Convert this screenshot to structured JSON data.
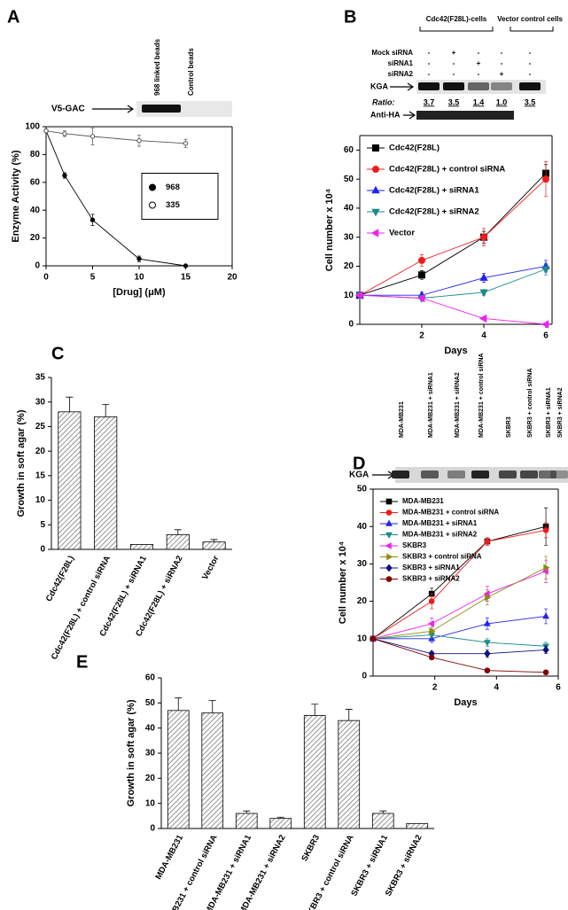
{
  "chart_data": [
    {
      "panel": "A",
      "type": "line",
      "xlabel": "[Drug] (μM)",
      "ylabel": "Enzyme Activity (%)",
      "x": [
        0,
        2,
        5,
        10,
        15
      ],
      "xlim": [
        0,
        20
      ],
      "xticks": [
        0,
        5,
        10,
        15,
        20
      ],
      "ylim": [
        0,
        100
      ],
      "yticks": [
        0,
        20,
        40,
        60,
        80,
        100
      ],
      "box": true,
      "legend": "center right",
      "legend_frame": true,
      "series": [
        {
          "name": "968",
          "color": "#000000",
          "marker": "circle",
          "values": [
            97,
            65,
            33,
            5,
            0
          ],
          "errors": [
            0,
            2,
            4,
            2,
            0
          ]
        },
        {
          "name": "335",
          "color": "#555555",
          "marker": "circle-open",
          "values": [
            97,
            95,
            93,
            90,
            88
          ],
          "errors": [
            0,
            2,
            6,
            4,
            3
          ]
        }
      ],
      "blot": {
        "label": "V5-GAC",
        "lanes": [
          "968 linked beads",
          "Control beads"
        ]
      }
    },
    {
      "panel": "B",
      "type": "line",
      "xlabel": "Days",
      "ylabel": "Cell number x 10⁴",
      "x": [
        0,
        2,
        4,
        6
      ],
      "xlim": [
        0,
        6.2
      ],
      "xticks": [
        2,
        4,
        6
      ],
      "ylim": [
        0,
        65
      ],
      "yticks": [
        0,
        10,
        20,
        30,
        40,
        50,
        60
      ],
      "box": true,
      "legend": "upper left",
      "series": [
        {
          "name": "Cdc42(F28L)",
          "color": "#000000",
          "marker": "square",
          "values": [
            10,
            17,
            30,
            52
          ],
          "errors": [
            0,
            1.5,
            2,
            3
          ]
        },
        {
          "name": "Cdc42(F28L) + control siRNA",
          "color": "#ee1c1c",
          "marker": "circle",
          "values": [
            10,
            22,
            30,
            50
          ],
          "errors": [
            0,
            2,
            3,
            6
          ]
        },
        {
          "name": "Cdc42(F28L) + siRNA1",
          "color": "#2222ee",
          "marker": "triangle-up",
          "values": [
            10,
            10,
            16,
            20
          ],
          "errors": [
            0,
            1,
            1.5,
            2
          ]
        },
        {
          "name": "Cdc42(F28L) + siRNA2",
          "color": "#1a8a8a",
          "marker": "triangle-down",
          "values": [
            10,
            9,
            11,
            19
          ],
          "errors": [
            0,
            1,
            1,
            2
          ]
        },
        {
          "name": "Vector",
          "color": "#ee22ee",
          "marker": "triangle-left",
          "values": [
            10,
            9,
            2,
            0
          ],
          "errors": [
            0,
            0.5,
            0.5,
            0
          ]
        }
      ],
      "blot": {
        "groups": [
          "Cdc42(F28L)-cells",
          "Vector control cells"
        ],
        "rows": [
          {
            "label": "Mock siRNA",
            "signs": [
              "-",
              "+",
              "-",
              "-",
              "-"
            ]
          },
          {
            "label": "siRNA1",
            "signs": [
              "-",
              "-",
              "+",
              "-",
              "-"
            ]
          },
          {
            "label": "siRNA2",
            "signs": [
              "-",
              "-",
              "-",
              "+",
              "-"
            ]
          }
        ],
        "band": "KGA",
        "ratio_label": "Ratio:",
        "ratios": [
          "3.7",
          "3.5",
          "1.4",
          "1.0",
          "3.5"
        ],
        "loading": "Anti-HA"
      }
    },
    {
      "panel": "C",
      "type": "bar",
      "ylabel": "Growth in soft agar (%)",
      "categories": [
        "Cdc42(F28L)",
        "Cdc42(F28L) + control siRNA",
        "Cdc42(F28L) + siRNA1",
        "Cdc42(F28L) + siRNA2",
        "Vector"
      ],
      "values": [
        28,
        27,
        1,
        3,
        1.5
      ],
      "errors": [
        3,
        2.5,
        0,
        1,
        0.5
      ],
      "ylim": [
        0,
        35
      ],
      "yticks": [
        0,
        5,
        10,
        15,
        20,
        25,
        30,
        35
      ]
    },
    {
      "panel": "D",
      "type": "line",
      "xlabel": "Days",
      "ylabel": "Cell number x 10⁴",
      "x": [
        0,
        1.9,
        3.7,
        5.6
      ],
      "xlim": [
        0,
        6
      ],
      "xticks": [
        2,
        4,
        6
      ],
      "ylim": [
        0,
        50
      ],
      "yticks": [
        0,
        10,
        20,
        30,
        40,
        50
      ],
      "box": true,
      "legend": "upper left",
      "series": [
        {
          "name": "MDA-MB231",
          "color": "#000000",
          "marker": "square",
          "values": [
            10,
            22,
            36,
            40
          ],
          "errors": [
            0,
            1.5,
            1,
            5
          ]
        },
        {
          "name": "MDA-MB231 + control siRNA",
          "color": "#ee1c1c",
          "marker": "circle",
          "values": [
            10,
            20,
            36,
            39
          ],
          "errors": [
            0,
            2,
            1,
            2
          ]
        },
        {
          "name": "MDA-MB231 + siRNA1",
          "color": "#2222ee",
          "marker": "triangle-up",
          "values": [
            10,
            10,
            14,
            16
          ],
          "errors": [
            0,
            1,
            1.5,
            2
          ]
        },
        {
          "name": "MDA-MB231 + siRNA2",
          "color": "#1a8a8a",
          "marker": "triangle-down",
          "values": [
            10,
            11,
            9,
            8
          ],
          "errors": [
            0,
            1,
            1,
            1
          ]
        },
        {
          "name": "SKBR3",
          "color": "#ee22ee",
          "marker": "triangle-left",
          "values": [
            10,
            14,
            22,
            28
          ],
          "errors": [
            0,
            1.5,
            2,
            3
          ]
        },
        {
          "name": "SKBR3 + control siRNA",
          "color": "#8a8a10",
          "marker": "triangle-right",
          "values": [
            10,
            12,
            21,
            29
          ],
          "errors": [
            0,
            1,
            2,
            3
          ]
        },
        {
          "name": "SKBR3 + siRNA1",
          "color": "#101080",
          "marker": "diamond",
          "values": [
            10,
            6,
            6,
            7
          ],
          "errors": [
            0,
            0.5,
            1,
            1
          ]
        },
        {
          "name": "SKBR3 + siRNA2",
          "color": "#800000",
          "marker": "circle",
          "values": [
            10,
            5,
            1.5,
            1
          ],
          "errors": [
            0,
            0.5,
            0.5,
            0.3
          ]
        }
      ],
      "blot": {
        "band": "KGA",
        "lanes": [
          "MDA-MB231",
          "MDA-MB231 + siRNA1",
          "MDA-MB231 + siRNA2",
          "MDA-MB231 + control siRNA",
          "SKBR3",
          "SKBR3 + control siRNA",
          "SKBR3 + siRNA1",
          "SKBR3 + siRNA2"
        ]
      }
    },
    {
      "panel": "E",
      "type": "bar",
      "ylabel": "Growth in soft agar (%)",
      "categories": [
        "MDA-MB231",
        "MDA-MB231 + control siRNA",
        "MDA-MB231 + siRNA1",
        "MDA-MB231 + siRNA2",
        "SKBR3",
        "SKBR3 + control siRNA",
        "SKBR3 + siRNA1",
        "SKBR3 + siRNA2"
      ],
      "values": [
        47,
        46,
        6,
        4,
        45,
        43,
        6,
        2
      ],
      "errors": [
        5,
        5,
        1,
        0.5,
        4.5,
        4.5,
        1,
        0
      ],
      "ylim": [
        0,
        60
      ],
      "yticks": [
        0,
        10,
        20,
        30,
        40,
        50,
        60
      ]
    }
  ]
}
